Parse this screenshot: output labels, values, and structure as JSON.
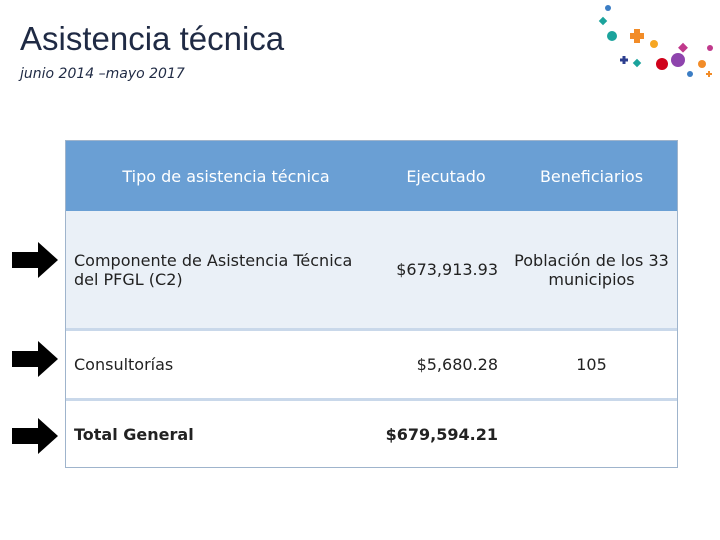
{
  "header": {
    "title": "Asistencia técnica",
    "subtitle": "junio 2014 –mayo 2017"
  },
  "table": {
    "columns": [
      "Tipo de asistencia técnica",
      "Ejecutado",
      "Beneficiarios"
    ],
    "rows": [
      [
        "Componente de Asistencia Técnica del PFGL (C2)",
        "$673,913.93",
        "Población de los 33 municipios"
      ],
      [
        "Consultorías",
        "$5,680.28",
        "105"
      ],
      [
        "Total General",
        "$679,594.21"
      ]
    ]
  }
}
